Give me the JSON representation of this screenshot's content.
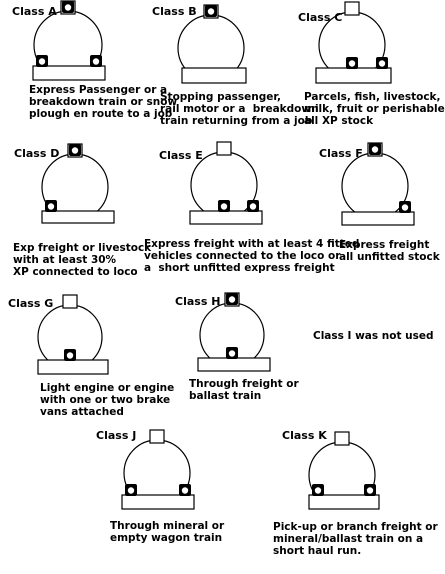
{
  "diagram": {
    "classes": [
      {
        "key": "A",
        "title": "Class A",
        "lamps": [
          "top",
          "left",
          "right"
        ],
        "description": "Express Passenger or a\nbreakdown train or snow\nplough en route to a job"
      },
      {
        "key": "B",
        "title": "Class B",
        "lamps": [
          "top"
        ],
        "description": "Stopping passenger,\nrail motor or a  breakdown\ntrain returning from a job"
      },
      {
        "key": "C",
        "title": "Class C",
        "lamps": [
          "center",
          "right"
        ],
        "description": "Parcels, fish, livestock,\nmilk, fruit or perishables\nall XP stock"
      },
      {
        "key": "D",
        "title": "Class D",
        "lamps": [
          "top",
          "left"
        ],
        "description": "Exp freight or livestock\nwith at least 30%\nXP connected to loco"
      },
      {
        "key": "E",
        "title": "Class E",
        "lamps": [
          "center",
          "right"
        ],
        "description": "Express freight with at least 4 fitted\nvehicles connected to the loco or\na  short unfitted express freight"
      },
      {
        "key": "F",
        "title": "Class F",
        "lamps": [
          "top",
          "right"
        ],
        "description": "Express freight\nall unfitted stock"
      },
      {
        "key": "G",
        "title": "Class G",
        "lamps": [
          "center"
        ],
        "description": "Light engine or engine\nwith one or two brake\nvans attached"
      },
      {
        "key": "H",
        "title": "Class H",
        "lamps": [
          "top",
          "center"
        ],
        "description": "Through freight or\nballast train"
      },
      {
        "key": "J",
        "title": "Class J",
        "lamps": [
          "left",
          "right"
        ],
        "description": "Through mineral or\nempty wagon train"
      },
      {
        "key": "K",
        "title": "Class K",
        "lamps": [
          "left",
          "right"
        ],
        "description": "Pick-up or branch freight or\nmineral/ballast train on a\nshort haul run."
      }
    ],
    "note": "Class I was not used"
  }
}
